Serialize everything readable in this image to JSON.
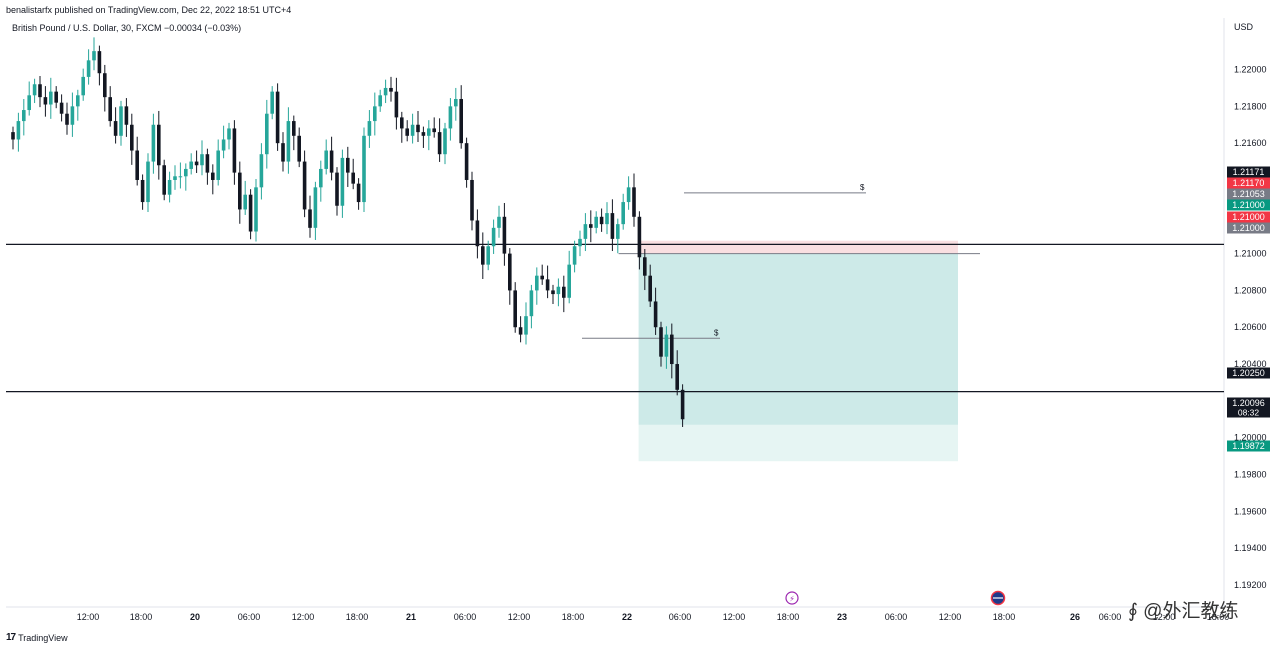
{
  "header": {
    "published": "benalistarfx published on TradingView.com, Dec 22, 2022 18:51 UTC+4",
    "legend": "British Pound / U.S. Dollar, 30, FXCM  −0.00034 (−0.03%)"
  },
  "branding": {
    "logo": "TradingView"
  },
  "watermark": {
    "text": "∮ @外汇教练"
  },
  "colors": {
    "up": "#26a69a",
    "down": "#131722",
    "target_zone": "#b2dfdb",
    "stop_zone": "#f8d7da",
    "axis_text": "#131722",
    "price_label_black": "#131722",
    "price_label_red": "#f23645",
    "price_label_green": "#089981",
    "price_label_gray": "#787b86"
  },
  "chart_data": {
    "type": "candlestick",
    "symbol": "GBPUSD",
    "timeframe": "30",
    "y_axis": {
      "unit": "USD",
      "ylim": [
        1.1908,
        1.2228
      ],
      "ticks": [
        "1.22000",
        "1.21800",
        "1.21600",
        "1.21400",
        "1.21200",
        "1.21000",
        "1.20800",
        "1.20600",
        "1.20400",
        "1.20200",
        "1.20000",
        "1.19800",
        "1.19600",
        "1.19400",
        "1.19200"
      ]
    },
    "x_axis": {
      "ticks": [
        "12:00",
        "18:00",
        "20",
        "06:00",
        "12:00",
        "18:00",
        "21",
        "06:00",
        "12:00",
        "18:00",
        "22",
        "06:00",
        "12:00",
        "18:00",
        "23",
        "06:00",
        "12:00",
        "18:00",
        "26",
        "06:00",
        "12:00",
        "18:00"
      ]
    },
    "horizontal_lines": [
      {
        "price": 1.2105
      },
      {
        "price": 1.2025
      }
    ],
    "liquidity_marks": [
      {
        "label": "$",
        "price": 1.2133
      },
      {
        "label": "$",
        "price": 1.2054
      }
    ],
    "position": {
      "entry": 1.21,
      "stop": 1.2107,
      "target": 1.19872
    },
    "price_labels": [
      {
        "value": "1.21171",
        "style": "black"
      },
      {
        "value": "1.21170",
        "style": "red"
      },
      {
        "value": "1.21053",
        "style": "gray"
      },
      {
        "value": "1.21000",
        "style": "green"
      },
      {
        "value": "1.21000",
        "style": "red"
      },
      {
        "value": "1.21000",
        "style": "gray"
      },
      {
        "value": "1.20250",
        "style": "black"
      },
      {
        "value": "1.20096",
        "style": "black",
        "countdown": "08:32"
      },
      {
        "value": "1.19872",
        "style": "green"
      }
    ],
    "closes": [
      1.2162,
      1.2172,
      1.2178,
      1.2186,
      1.2192,
      1.2185,
      1.2181,
      1.2188,
      1.2182,
      1.2176,
      1.217,
      1.218,
      1.2186,
      1.2196,
      1.2205,
      1.221,
      1.2198,
      1.2185,
      1.2172,
      1.2164,
      1.218,
      1.217,
      1.2156,
      1.214,
      1.2128,
      1.215,
      1.217,
      1.2148,
      1.2132,
      1.214,
      1.2142,
      1.2142,
      1.2146,
      1.215,
      1.2148,
      1.2154,
      1.2144,
      1.214,
      1.2156,
      1.2162,
      1.2168,
      1.2144,
      1.2124,
      1.2132,
      1.2112,
      1.2136,
      1.2154,
      1.2176,
      1.2188,
      1.216,
      1.215,
      1.2172,
      1.2164,
      1.215,
      1.2124,
      1.2114,
      1.2136,
      1.2146,
      1.2156,
      1.2144,
      1.2126,
      1.2152,
      1.2144,
      1.2138,
      1.2128,
      1.2164,
      1.2172,
      1.218,
      1.2186,
      1.219,
      1.2188,
      1.2174,
      1.2168,
      1.2164,
      1.217,
      1.2166,
      1.2164,
      1.2168,
      1.2166,
      1.2154,
      1.2168,
      1.218,
      1.2184,
      1.216,
      1.214,
      1.2118,
      1.2104,
      1.2094,
      1.2104,
      1.2114,
      1.212,
      1.21,
      1.208,
      1.206,
      1.2056,
      1.2066,
      1.208,
      1.2088,
      1.2086,
      1.208,
      1.2078,
      1.2082,
      1.2076,
      1.2094,
      1.2104,
      1.2108,
      1.2116,
      1.2114,
      1.212,
      1.2116,
      1.2122,
      1.2108,
      1.2116,
      1.2128,
      1.2136,
      1.212,
      1.2098,
      1.2088,
      1.2074,
      1.206,
      1.2044,
      1.2056,
      1.204,
      1.2026,
      1.201
    ]
  }
}
